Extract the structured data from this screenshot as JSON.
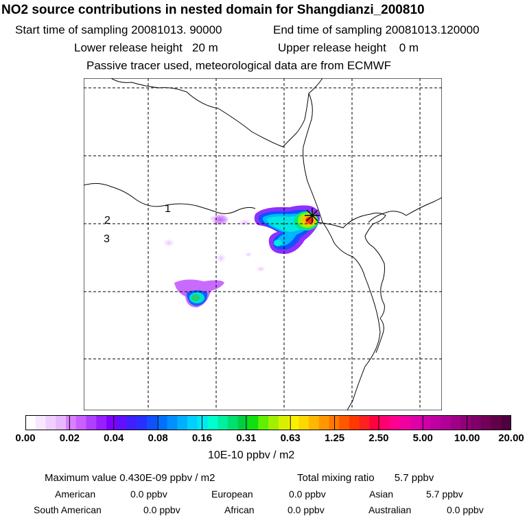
{
  "header": {
    "title": "NO2 source contributions in nested domain for Shangdianzi_200810",
    "start_label": "Start time of sampling 20081013. 90000",
    "end_label": "End time of sampling 20081013.120000",
    "lower_release": "Lower release height   20 m",
    "upper_release": "Upper release height    0 m",
    "tracer_info": "Passive tracer used, meteorological data are from ECMWF"
  },
  "map": {
    "site_marker": "Shangdianzi receptor",
    "labels": [
      "1",
      "2",
      "3"
    ],
    "plume_color_low": "#cc66ff",
    "plume_color_high": "#ff2200"
  },
  "colorbar": {
    "unit": "10E-10 ppbv / m2",
    "ticks": [
      "0.00",
      "0.02",
      "0.04",
      "0.08",
      "0.16",
      "0.31",
      "0.63",
      "1.25",
      "2.50",
      "5.00",
      "10.00",
      "20.00"
    ],
    "colors": [
      "#ffffff",
      "#f8e8ff",
      "#f0d0ff",
      "#e8b8ff",
      "#d880ff",
      "#c860ff",
      "#b040ff",
      "#9820ff",
      "#8000ff",
      "#6010ff",
      "#4020ff",
      "#2830ff",
      "#1050ff",
      "#0070ff",
      "#0090ff",
      "#00b0ff",
      "#00d0ff",
      "#00e8f0",
      "#00ffd0",
      "#00f0a0",
      "#00e070",
      "#00d040",
      "#10e010",
      "#60f000",
      "#a0f000",
      "#d8f000",
      "#f8f000",
      "#ffd800",
      "#ffb800",
      "#ff9800",
      "#ff7800",
      "#ff5800",
      "#ff3800",
      "#ff2020",
      "#ff0040",
      "#ff0070",
      "#ff0090",
      "#f000a0",
      "#e000a8",
      "#d000a8",
      "#c000a0",
      "#b00098",
      "#a00088",
      "#900078",
      "#800068",
      "#700058",
      "#600048",
      "#500040"
    ]
  },
  "stats": {
    "max_label": "Maximum value  0.430E-09 ppbv / m2",
    "total_label": "Total mixing ratio       5.7 ppbv",
    "regions": [
      {
        "name": "American",
        "value": "0.0 ppbv"
      },
      {
        "name": "European",
        "value": "0.0 ppbv"
      },
      {
        "name": "Asian",
        "value": "5.7 ppbv"
      },
      {
        "name": "South American",
        "value": "0.0 ppbv"
      },
      {
        "name": "African",
        "value": "0.0 ppbv"
      },
      {
        "name": "Australian",
        "value": "0.0 ppbv"
      }
    ]
  }
}
